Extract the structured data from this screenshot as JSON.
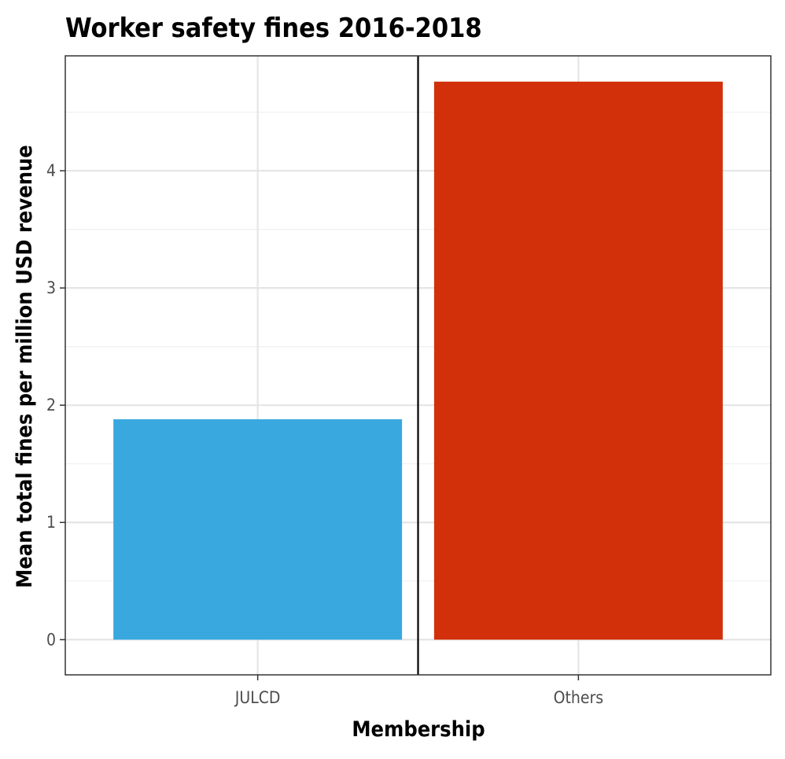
{
  "chart_data": {
    "type": "bar",
    "title": "Worker safety fines 2016-2018",
    "xlabel": "Membership",
    "ylabel": "Mean total fines per million USD revenue",
    "categories": [
      "JULCD",
      "Others"
    ],
    "values": [
      1.88,
      4.76
    ],
    "bar_colors": [
      "#38a8df",
      "#d1300a"
    ],
    "ylim": [
      -0.3,
      4.98
    ],
    "y_ticks": [
      0,
      1,
      2,
      3,
      4
    ],
    "y_tick_labels": [
      "0",
      "1",
      "2",
      "3",
      "4"
    ],
    "grid": true,
    "legend": "none",
    "reference_line": {
      "x_between_categories": [
        0,
        1
      ],
      "color": "#000000"
    },
    "colors": {
      "grid_major": "#e5e5e5",
      "grid_minor": "#f0f0f0",
      "panel_border": "#333333",
      "tick_text": "#4d4d4d"
    }
  }
}
